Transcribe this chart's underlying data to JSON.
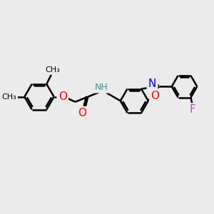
{
  "bg_color": "#ebebeb",
  "bond_color": "#000000",
  "bond_width": 1.8,
  "atom_colors": {
    "O": "#ff0000",
    "N": "#0000cc",
    "F": "#cc44cc",
    "NH": "#4a9090",
    "C": "#000000"
  },
  "font_size": 10,
  "figsize": [
    3.0,
    3.0
  ],
  "dpi": 100
}
